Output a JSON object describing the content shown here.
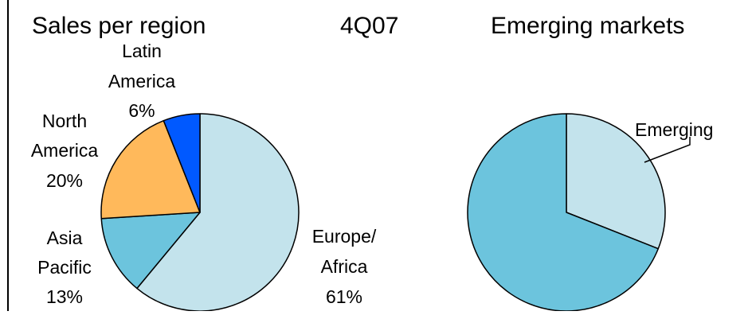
{
  "header": {
    "title": "Sales per region",
    "period": "4Q07",
    "right_title": "Emerging markets"
  },
  "chart_data": [
    {
      "type": "pie",
      "title": "Sales per region",
      "slices": [
        {
          "name_lines": [
            "Europe/",
            "Africa"
          ],
          "pct_label": "61%",
          "value": 61,
          "color": "#c3e3ec"
        },
        {
          "name_lines": [
            "Asia",
            "Pacific"
          ],
          "pct_label": "13%",
          "value": 13,
          "color": "#6cc4dd"
        },
        {
          "name_lines": [
            "North",
            "America"
          ],
          "pct_label": "20%",
          "value": 20,
          "color": "#ffb95b"
        },
        {
          "name_lines": [
            "Latin",
            "America"
          ],
          "pct_label": "6%",
          "value": 6,
          "color": "#0059ff"
        }
      ]
    },
    {
      "type": "pie",
      "title": "Emerging markets",
      "slices": [
        {
          "name": "Emerging",
          "value": 31,
          "color": "#c3e3ec"
        },
        {
          "value": 69,
          "color": "#6cc4dd"
        }
      ]
    }
  ],
  "colors": {
    "outline": "#000000",
    "background": "#ffffff"
  }
}
